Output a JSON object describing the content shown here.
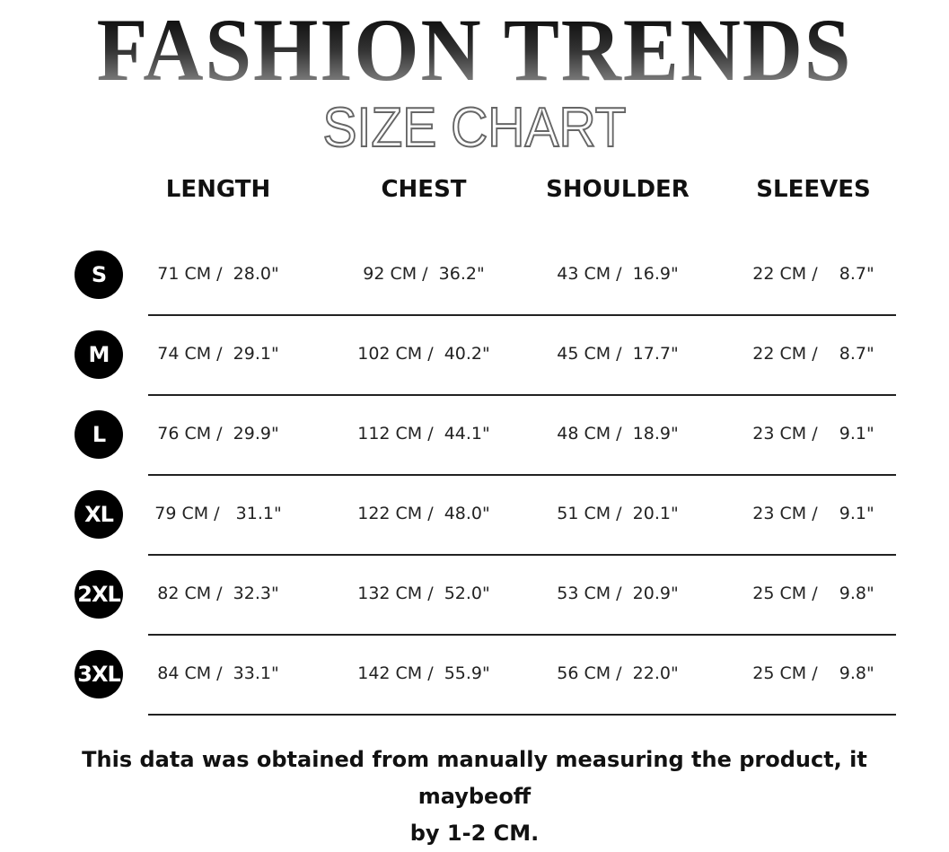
{
  "title": "FASHION TRENDS",
  "subtitle": "SIZE CHART",
  "headers": [
    "LENGTH",
    "CHEST",
    "SHOULDER",
    "SLEEVES"
  ],
  "rows": [
    {
      "size": "S",
      "cells": [
        "71 CM /  28.0\"",
        "92 CM /  36.2\"",
        "43 CM /  16.9\"",
        "22 CM /    8.7\""
      ]
    },
    {
      "size": "M",
      "cells": [
        "74 CM /  29.1\"",
        "102 CM /  40.2\"",
        "45 CM /  17.7\"",
        "22 CM /    8.7\""
      ]
    },
    {
      "size": "L",
      "cells": [
        "76 CM /  29.9\"",
        "112 CM /  44.1\"",
        "48 CM /  18.9\"",
        "23 CM /    9.1\""
      ]
    },
    {
      "size": "XL",
      "cells": [
        "79 CM /   31.1\"",
        "122 CM /  48.0\"",
        "51 CM /  20.1\"",
        "23 CM /    9.1\""
      ]
    },
    {
      "size": "2XL",
      "cells": [
        "82 CM /  32.3\"",
        "132 CM /  52.0\"",
        "53 CM /  20.9\"",
        "25 CM /    9.8\""
      ]
    },
    {
      "size": "3XL",
      "cells": [
        "84 CM /  33.1\"",
        "142 CM /  55.9\"",
        "56 CM /  22.0\"",
        "25 CM /    9.8\""
      ]
    }
  ],
  "note_line1": "This data was obtained from manually measuring the product, it maybeoff",
  "note_line2": "by 1-2 CM."
}
